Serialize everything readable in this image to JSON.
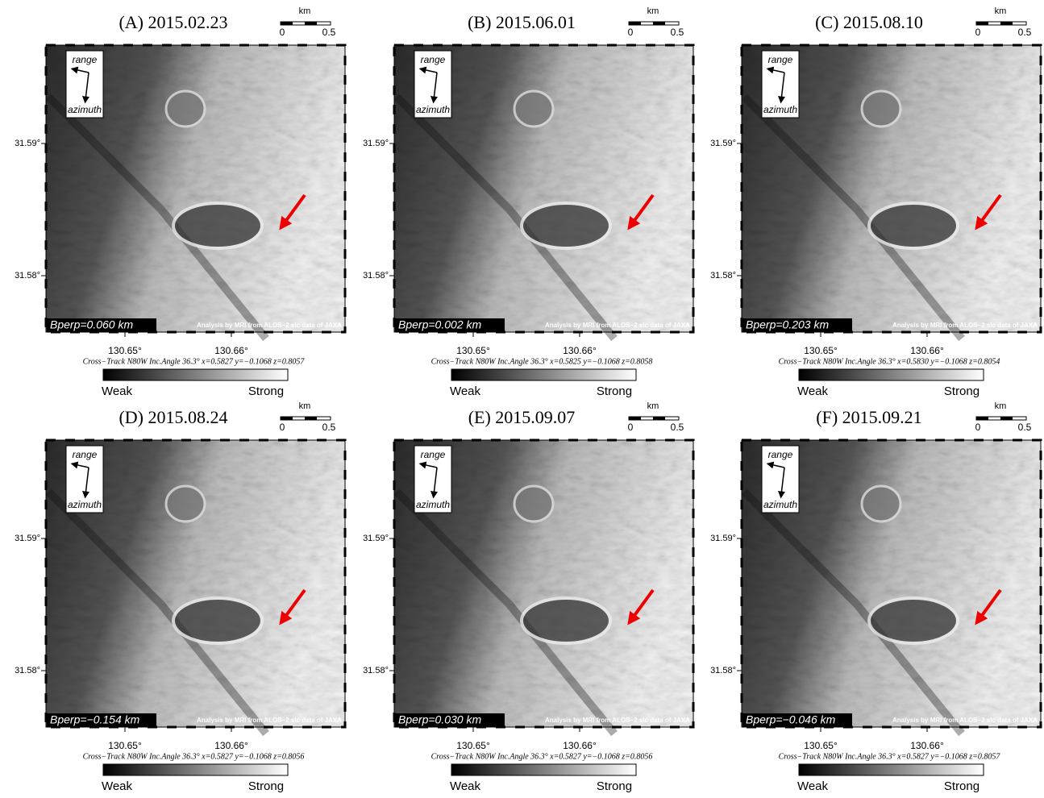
{
  "panels": [
    {
      "label": "(A) 2015.02.23",
      "bperp": "Bperp=0.060 km",
      "geometry": "Cross−Track N80W  Inc.Angle 36.3°  x=0.5827  y=−0.1068  z=0.8057"
    },
    {
      "label": "(B) 2015.06.01",
      "bperp": "Bperp=0.002 km",
      "geometry": "Cross−Track N80W  Inc.Angle 36.3°  x=0.5825  y=−0.1068  z=0.8058"
    },
    {
      "label": "(C) 2015.08.10",
      "bperp": "Bperp=0.203 km",
      "geometry": "Cross−Track N80W  Inc.Angle 36.3°  x=0.5830  y=−0.1068  z=0.8054"
    },
    {
      "label": "(D) 2015.08.24",
      "bperp": "Bperp=−0.154 km",
      "geometry": "Cross−Track N80W  Inc.Angle 36.3°  x=0.5827  y=−0.1068  z=0.8056"
    },
    {
      "label": "(E) 2015.09.07",
      "bperp": "Bperp=0.030 km",
      "geometry": "Cross−Track N80W  Inc.Angle 36.3°  x=0.5827  y=−0.1068  z=0.8056"
    },
    {
      "label": "(F) 2015.09.21",
      "bperp": "Bperp=−0.046 km",
      "geometry": "Cross−Track N80W  Inc.Angle 36.3°  x=0.5827  y=−0.1068  z=0.8057"
    }
  ],
  "common": {
    "scale_unit": "km",
    "scale_ticks": [
      "0",
      "0.5"
    ],
    "lat_ticks": [
      "31.59°",
      "31.58°"
    ],
    "lon_ticks": [
      "130.65°",
      "130.66°"
    ],
    "range": "range",
    "azimuth": "azimuth",
    "credit": "Analysis by MRI from ALOS−2 slc data of JAXA",
    "weak": "Weak",
    "strong": "Strong"
  }
}
